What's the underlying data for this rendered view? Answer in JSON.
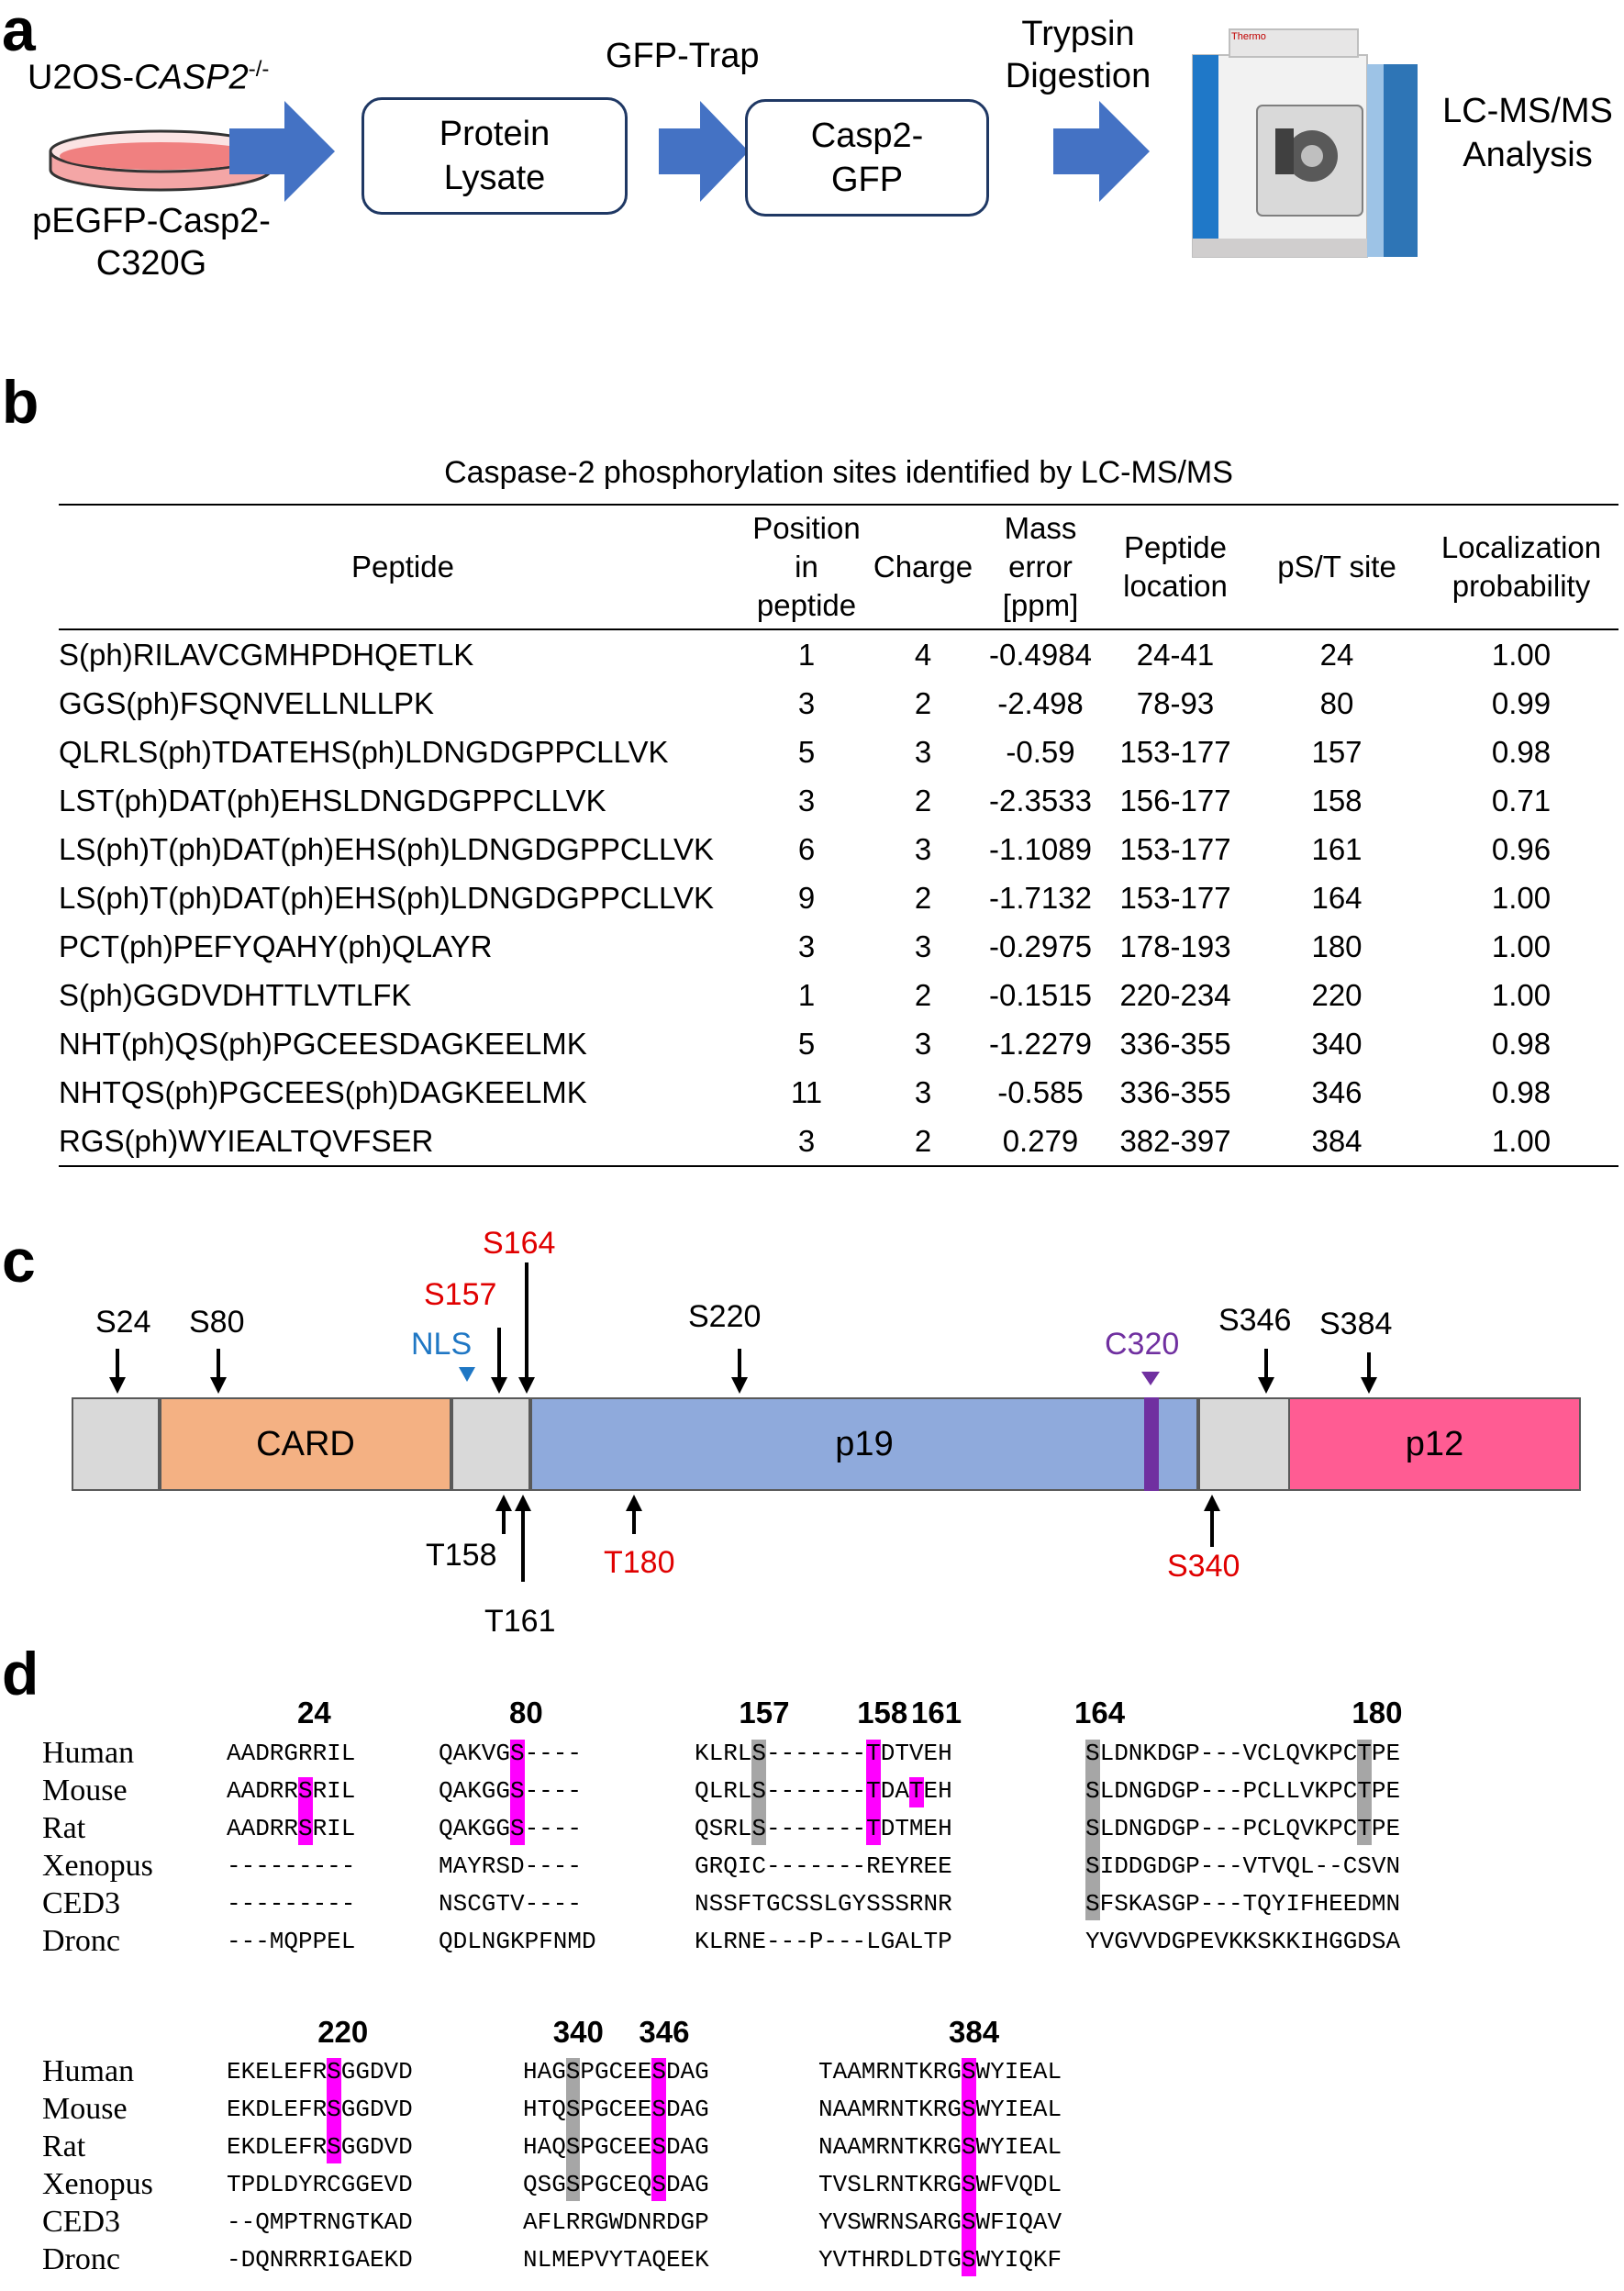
{
  "panel_a": {
    "label": "a",
    "cell_line_prefix": "U2OS-",
    "cell_line_gene": "CASP2",
    "cell_line_sup": "-/-",
    "plasmid_line1": "pEGFP-Casp2-",
    "plasmid_line2": "C320G",
    "step_gfp_trap": "GFP-Trap",
    "box1_line1": "Protein",
    "box1_line2": "Lysate",
    "box2_line1": "Casp2-",
    "box2_line2": "GFP",
    "step_trypsin_line1": "Trypsin",
    "step_trypsin_line2": "Digestion",
    "instrument_brand": "Thermo",
    "lcms_line1": "LC-MS/MS",
    "lcms_line2": "Analysis"
  },
  "panel_b": {
    "label": "b",
    "title": "Caspase-2 phosphorylation sites identified by LC-MS/MS",
    "headers": {
      "peptide": "Peptide",
      "position": [
        "Position",
        "in",
        "peptide"
      ],
      "charge": "Charge",
      "mass": [
        "Mass",
        "error",
        "[ppm]"
      ],
      "location": [
        "Peptide",
        "location"
      ],
      "site": "pS/T site",
      "prob": [
        "Localization",
        "probability"
      ]
    },
    "rows": [
      {
        "peptide": "S(ph)RILAVCGMHPDHQETLK",
        "position": "1",
        "charge": "4",
        "mass_error": "-0.4984",
        "location": "24-41",
        "site": "24",
        "prob": "1.00"
      },
      {
        "peptide": "GGS(ph)FSQNVELLNLLPK",
        "position": "3",
        "charge": "2",
        "mass_error": "-2.498",
        "location": "78-93",
        "site": "80",
        "prob": "0.99"
      },
      {
        "peptide": "QLRLS(ph)TDATEHS(ph)LDNGDGPPCLLVK",
        "position": "5",
        "charge": "3",
        "mass_error": "-0.59",
        "location": "153-177",
        "site": "157",
        "prob": "0.98"
      },
      {
        "peptide": "LST(ph)DAT(ph)EHSLDNGDGPPCLLVK",
        "position": "3",
        "charge": "2",
        "mass_error": "-2.3533",
        "location": "156-177",
        "site": "158",
        "prob": "0.71"
      },
      {
        "peptide": "LS(ph)T(ph)DAT(ph)EHS(ph)LDNGDGPPCLLVK",
        "position": "6",
        "charge": "3",
        "mass_error": "-1.1089",
        "location": "153-177",
        "site": "161",
        "prob": "0.96"
      },
      {
        "peptide": "LS(ph)T(ph)DAT(ph)EHS(ph)LDNGDGPPCLLVK",
        "position": "9",
        "charge": "2",
        "mass_error": "-1.7132",
        "location": "153-177",
        "site": "164",
        "prob": "1.00"
      },
      {
        "peptide": "PCT(ph)PEFYQAHY(ph)QLAYR",
        "position": "3",
        "charge": "3",
        "mass_error": "-0.2975",
        "location": "178-193",
        "site": "180",
        "prob": "1.00"
      },
      {
        "peptide": "S(ph)GGDVDHTTLVTLFK",
        "position": "1",
        "charge": "2",
        "mass_error": "-0.1515",
        "location": "220-234",
        "site": "220",
        "prob": "1.00"
      },
      {
        "peptide": "NHT(ph)QS(ph)PGCEESDAGKEELMK",
        "position": "5",
        "charge": "3",
        "mass_error": "-1.2279",
        "location": "336-355",
        "site": "340",
        "prob": "0.98"
      },
      {
        "peptide": "NHTQS(ph)PGCEES(ph)DAGKEELMK",
        "position": "11",
        "charge": "3",
        "mass_error": "-0.585",
        "location": "336-355",
        "site": "346",
        "prob": "0.98"
      },
      {
        "peptide": "RGS(ph)WYIEALTQVFSER",
        "position": "3",
        "charge": "2",
        "mass_error": "0.279",
        "location": "382-397",
        "site": "384",
        "prob": "1.00"
      }
    ]
  },
  "panel_c": {
    "label": "c",
    "domains": [
      "CARD",
      "p19",
      "p12"
    ],
    "top_sites": [
      "S24",
      "S80",
      "S157",
      "S164",
      "S220",
      "S346",
      "S384"
    ],
    "nls": "NLS",
    "catalytic": "C320",
    "bottom_sites": [
      "T158",
      "T161",
      "T180",
      "S340"
    ],
    "colors": {
      "card": "#f4b183",
      "p19": "#8faadc",
      "p12": "#ff5c93",
      "linker": "#d9d9d9",
      "c320": "#7030a0",
      "red": "#e00000",
      "nls": "#1f77c4"
    }
  },
  "panel_d": {
    "label": "d",
    "species": [
      "Human",
      "Mouse",
      "Rat",
      "Xenopus",
      "CED3",
      "Dronc"
    ],
    "block1": {
      "boxes": [
        {
          "name": "box-24",
          "labels": [
            "24"
          ],
          "rows": [
            "AADRGRRIL",
            "AADRRSRIL",
            "AADRRSRIL",
            "---------",
            "---------",
            "---MQPPEL"
          ],
          "magenta": [
            [
              1,
              5
            ],
            [
              2,
              5
            ]
          ],
          "grey": []
        },
        {
          "name": "box-80",
          "labels": [
            "80"
          ],
          "rows": [
            "QAKVGS----",
            "QAKGGS----",
            "QAKGGS----",
            "MAYRSD----",
            "NSCGTV----",
            "QDLNGKPFNMD"
          ],
          "magenta": [
            [
              0,
              5
            ],
            [
              1,
              5
            ],
            [
              2,
              5
            ]
          ],
          "grey": []
        },
        {
          "name": "box-157-161",
          "labels": [
            "157",
            "158",
            "161"
          ],
          "rows": [
            "KLRLS-------TDTVEH",
            "QLRLS-------TDATEH",
            "QSRLS-------TDTMEH",
            "GRQIC-------REYREE",
            "NSSFTGCSSLGYSSSRNR",
            "KLRNE---P---LGALTP"
          ],
          "magenta": [
            [
              0,
              12
            ],
            [
              1,
              12
            ],
            [
              1,
              15
            ],
            [
              2,
              12
            ]
          ],
          "grey": [
            [
              0,
              4
            ],
            [
              1,
              4
            ],
            [
              2,
              4
            ]
          ]
        },
        {
          "name": "box-164-180",
          "labels": [
            "164",
            "180"
          ],
          "rows": [
            "SLDNKDGP---VCLQVKPCTPE",
            "SLDNGDGP---PCLLVKPCTPE",
            "SLDNGDGP---PCLQVKPCTPE",
            "SIDDGDGP---VTVQL--CSVN",
            "SFSKASGP---TQYIFHEEDMN",
            "YVGVVDGPEVKKSKKIHGGDSA"
          ],
          "magenta": [],
          "grey": [
            [
              0,
              0
            ],
            [
              1,
              0
            ],
            [
              2,
              0
            ],
            [
              3,
              0
            ],
            [
              4,
              0
            ],
            [
              0,
              19
            ],
            [
              1,
              19
            ],
            [
              2,
              19
            ]
          ]
        }
      ]
    },
    "block2": {
      "boxes": [
        {
          "name": "box-220",
          "labels": [
            "220"
          ],
          "rows": [
            "EKELEFRSGGDVD",
            "EKDLEFRSGGDVD",
            "EKDLEFRSGGDVD",
            "TPDLDYRCGGEVD",
            "--QMPTRNGTKAD",
            "-DQNRRRIGAEKD"
          ],
          "magenta": [
            [
              0,
              7
            ],
            [
              1,
              7
            ],
            [
              2,
              7
            ]
          ],
          "grey": []
        },
        {
          "name": "box-340-346",
          "labels": [
            "340",
            "346"
          ],
          "rows": [
            "HAGSPGCEESDAG",
            "HTQSPGCEESDAG",
            "HAQSPGCEESDAG",
            "QSGSPGCEQSDAG",
            "AFLRRGWDNRDGP",
            "NLMEPVYTAQEEK"
          ],
          "magenta": [
            [
              0,
              9
            ],
            [
              1,
              9
            ],
            [
              2,
              9
            ],
            [
              3,
              9
            ]
          ],
          "grey": [
            [
              0,
              3
            ],
            [
              1,
              3
            ],
            [
              2,
              3
            ],
            [
              3,
              3
            ]
          ]
        },
        {
          "name": "box-384",
          "labels": [
            "384"
          ],
          "rows": [
            "TAAMRNTKRGSWYIEAL",
            "NAAMRNTKRGSWYIEAL",
            "NAAMRNTKRGSWYIEAL",
            "TVSLRNTKRGSWFVQDL",
            "YVSWRNSARGSWFIQAV",
            "YVTHRDLDTGSWYIQKF"
          ],
          "magenta": [
            [
              0,
              10
            ],
            [
              1,
              10
            ],
            [
              2,
              10
            ],
            [
              3,
              10
            ],
            [
              4,
              10
            ],
            [
              5,
              10
            ]
          ],
          "grey": []
        }
      ]
    }
  }
}
